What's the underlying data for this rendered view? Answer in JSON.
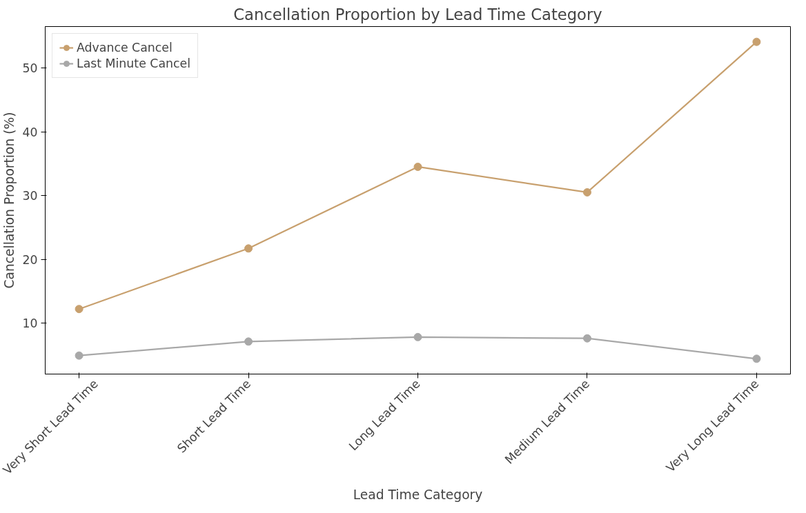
{
  "chart_data": {
    "type": "line",
    "title": "Cancellation Proportion by Lead Time Category",
    "xlabel": "Lead Time Category",
    "ylabel": "Cancellation Proportion (%)",
    "categories": [
      "Very Short Lead Time",
      "Short Lead Time",
      "Long Lead Time",
      "Medium Lead Time",
      "Very Long Lead Time"
    ],
    "series": [
      {
        "name": "Advance Cancel",
        "color": "#c8a06e",
        "values": [
          12.2,
          21.7,
          34.5,
          30.5,
          54.1
        ]
      },
      {
        "name": "Last Minute Cancel",
        "color": "#a8a8a8",
        "values": [
          4.9,
          7.1,
          7.8,
          7.6,
          4.4
        ]
      }
    ],
    "ylim": [
      2,
      56.5
    ],
    "yticks": [
      10,
      20,
      30,
      40,
      50
    ],
    "grid": false,
    "legend": "top left",
    "marker": "circle",
    "line_style": "solid"
  }
}
